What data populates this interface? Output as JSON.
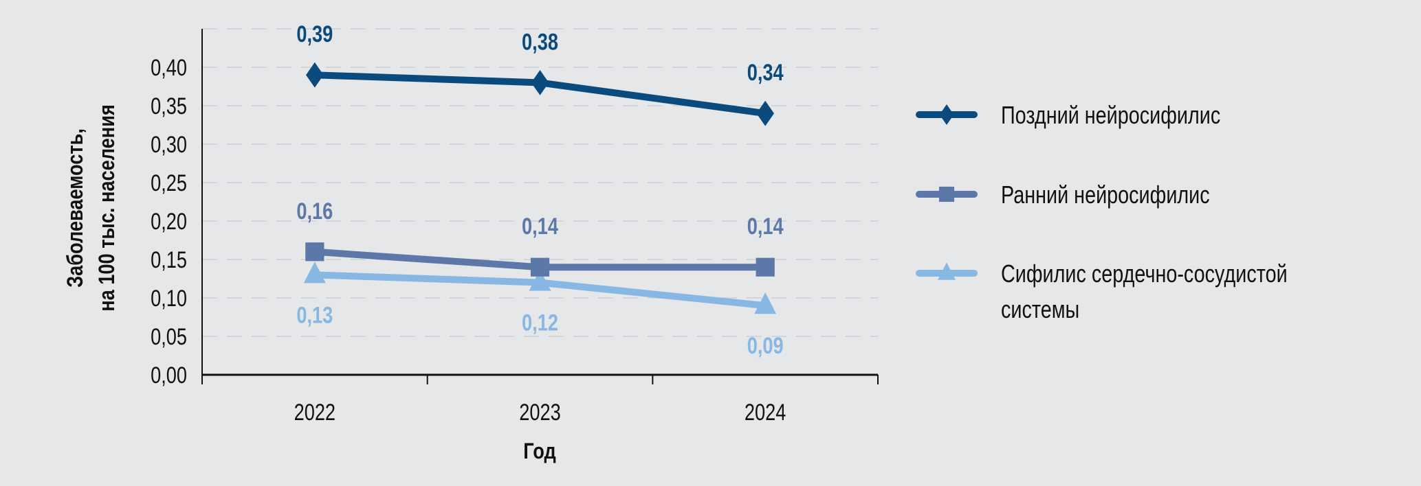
{
  "chart_data": {
    "type": "line",
    "title": "",
    "xlabel": "Год",
    "ylabel_lines": [
      "Заболеваемость,",
      "на 100 тыс. населения"
    ],
    "categories": [
      "2022",
      "2023",
      "2024"
    ],
    "ylim": [
      0,
      0.45
    ],
    "yticks": [
      "0,00",
      "0,05",
      "0,10",
      "0,15",
      "0,20",
      "0,25",
      "0,30",
      "0,35",
      "0,40"
    ],
    "grid": true,
    "legend_position": "right",
    "series": [
      {
        "name": "Поздний нейросифилис",
        "name_lines": [
          "Поздний нейросифилис"
        ],
        "values": [
          0.39,
          0.38,
          0.34
        ],
        "labels": [
          "0,39",
          "0,38",
          "0,34"
        ],
        "color": "#0b4a7d",
        "marker": "diamond",
        "label_pos": "above"
      },
      {
        "name": "Ранний нейросифилис",
        "name_lines": [
          "Ранний нейросифилис"
        ],
        "values": [
          0.16,
          0.14,
          0.14
        ],
        "labels": [
          "0,16",
          "0,14",
          "0,14"
        ],
        "color": "#5b78a8",
        "marker": "square",
        "label_pos": "above"
      },
      {
        "name": "Сифилис сердечно-сосудистой системы",
        "name_lines": [
          "Сифилис сердечно-сосудистой",
          "системы"
        ],
        "values": [
          0.13,
          0.12,
          0.09
        ],
        "labels": [
          "0,13",
          "0,12",
          "0,09"
        ],
        "color": "#86b8e3",
        "marker": "triangle",
        "label_pos": "below"
      }
    ]
  }
}
